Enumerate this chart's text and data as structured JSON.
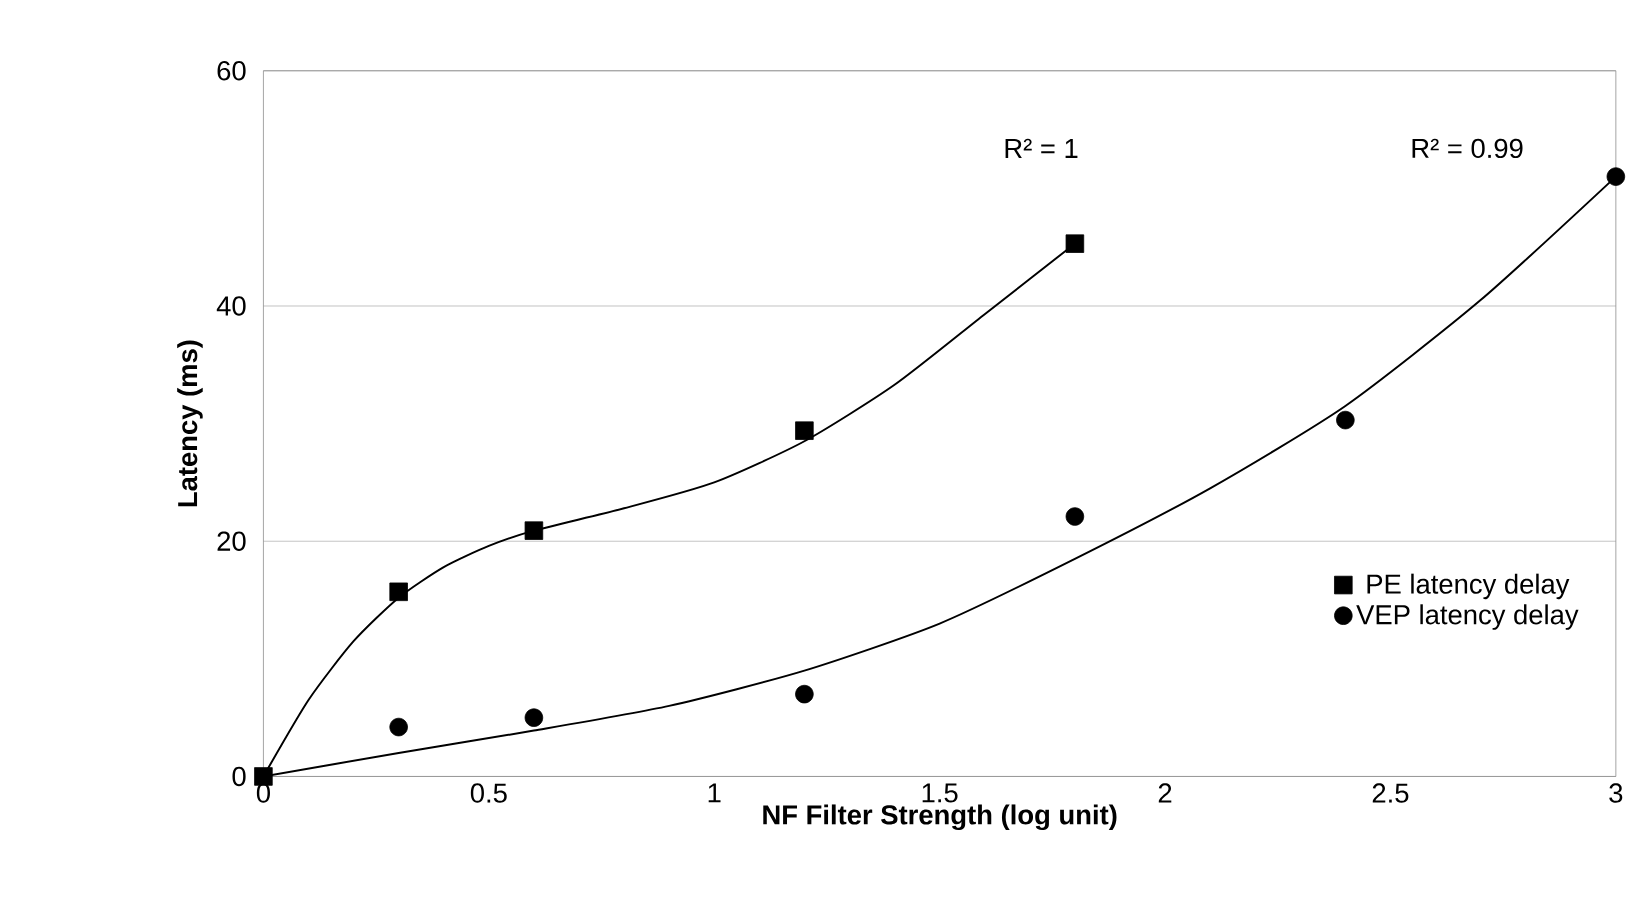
{
  "chart_data": {
    "type": "scatter",
    "xlabel": "NF Filter Strength (log  unit)",
    "ylabel": "Latency (ms)",
    "xlim": [
      0,
      3
    ],
    "ylim": [
      0,
      60
    ],
    "xticks": [
      0,
      0.5,
      1,
      1.5,
      2,
      2.5,
      3
    ],
    "yticks": [
      0,
      20,
      40,
      60
    ],
    "grid": "y",
    "legend": "bottom right",
    "series": [
      {
        "name": "PE latency delay",
        "marker": "square",
        "color": "#000000",
        "x": [
          0,
          0.3,
          0.6,
          1.2,
          1.8
        ],
        "values": [
          0,
          15.7,
          20.9,
          29.4,
          45.3
        ]
      },
      {
        "name": "VEP latency delay",
        "marker": "circle",
        "color": "#000000",
        "x": [
          0.3,
          0.6,
          1.2,
          1.8,
          2.4,
          3
        ],
        "values": [
          4.2,
          5.0,
          7.0,
          22.1,
          30.3,
          51
        ]
      },
      {
        "type": "line",
        "color": "#000000",
        "x": [
          0,
          0.1,
          0.2,
          0.3,
          0.4,
          0.5,
          0.6,
          0.8,
          1.0,
          1.2,
          1.4,
          1.6,
          1.8
        ],
        "values": [
          0,
          6.5,
          11.5,
          15.2,
          17.8,
          19.6,
          20.9,
          22.8,
          25,
          28.5,
          33.3,
          39.3,
          45.3
        ]
      },
      {
        "type": "line",
        "color": "#000000",
        "x": [
          0,
          0.3,
          0.6,
          0.9,
          1.2,
          1.5,
          1.8,
          2.1,
          2.4,
          2.7,
          3.0
        ],
        "values": [
          0,
          2,
          3.9,
          6,
          9,
          13,
          18.5,
          24.5,
          31.5,
          40.5,
          51
        ]
      }
    ],
    "annotations": [
      "R² = 1",
      "R² = 0.99"
    ]
  }
}
